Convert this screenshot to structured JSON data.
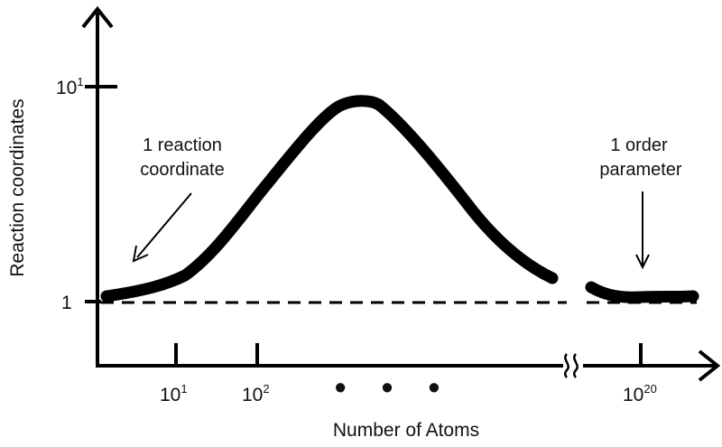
{
  "figure": {
    "y_axis_label": "Reaction coordinates",
    "x_axis_label": "Number of Atoms",
    "y_ticks": [
      {
        "base": "10",
        "exp": "1"
      },
      {
        "base": "1",
        "exp": ""
      }
    ],
    "x_ticks": [
      {
        "base": "10",
        "exp": "1"
      },
      {
        "base": "10",
        "exp": "2"
      },
      {
        "base": "10",
        "exp": "20"
      }
    ],
    "ellipsis": "• • •",
    "annotations": {
      "left": {
        "line1": "1 reaction",
        "line2": "coordinate"
      },
      "right": {
        "line1": "1 order",
        "line2": "parameter"
      }
    },
    "colors": {
      "ink": "#000000",
      "background": "#ffffff"
    }
  }
}
